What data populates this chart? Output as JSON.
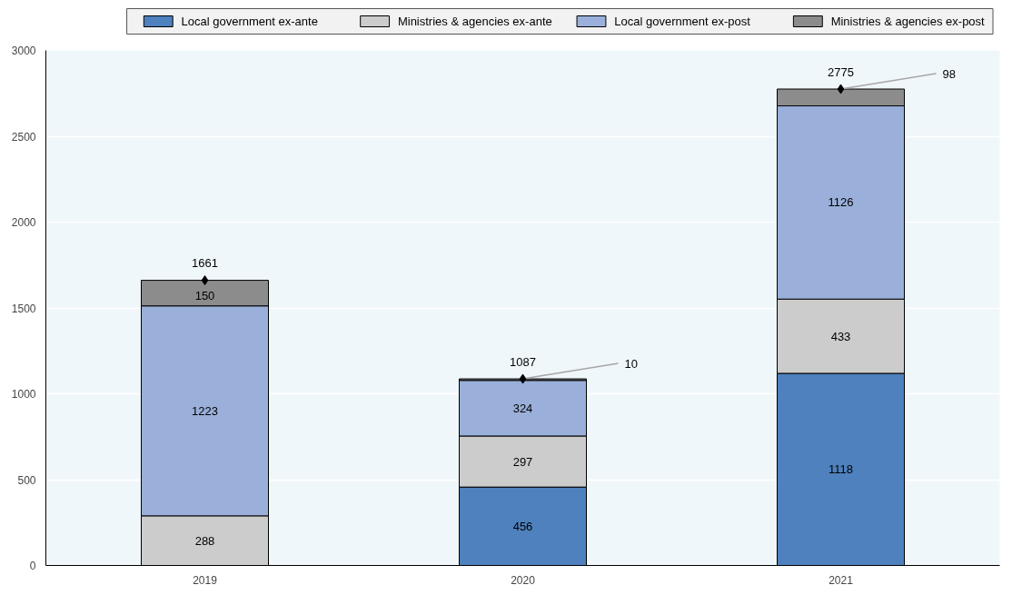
{
  "chart_data": {
    "type": "bar",
    "stacked": true,
    "categories": [
      "2019",
      "2020",
      "2021"
    ],
    "series": [
      {
        "name": "Local government ex-ante",
        "color": "#4e81bd",
        "values": [
          null,
          456,
          1118
        ],
        "value_labels": [
          null,
          "456",
          "1118"
        ]
      },
      {
        "name": "Ministries & agencies ex-ante",
        "color": "#cccccc",
        "values": [
          288,
          297,
          433
        ],
        "value_labels": [
          "288",
          "297",
          "433"
        ]
      },
      {
        "name": "Local government ex-post",
        "color": "#9ab0da",
        "values": [
          1223,
          324,
          1126
        ],
        "value_labels": [
          "1223",
          "324",
          "1126"
        ]
      },
      {
        "name": "Ministries & agencies ex-post",
        "color": "#8c8c8c",
        "values": [
          150,
          10,
          98
        ],
        "value_labels": [
          "150",
          "10",
          "98"
        ]
      },
      {
        "type": "scatter",
        "color": "#000000",
        "marker": "diamond",
        "values": [
          1661,
          1087,
          2775
        ],
        "value_labels": [
          "1661",
          "1087",
          "2775"
        ]
      }
    ],
    "ylim": [
      0,
      3000
    ],
    "yticks": [
      0,
      500,
      1000,
      1500,
      2000,
      2500,
      3000
    ],
    "grid": "y",
    "legend": "top"
  }
}
